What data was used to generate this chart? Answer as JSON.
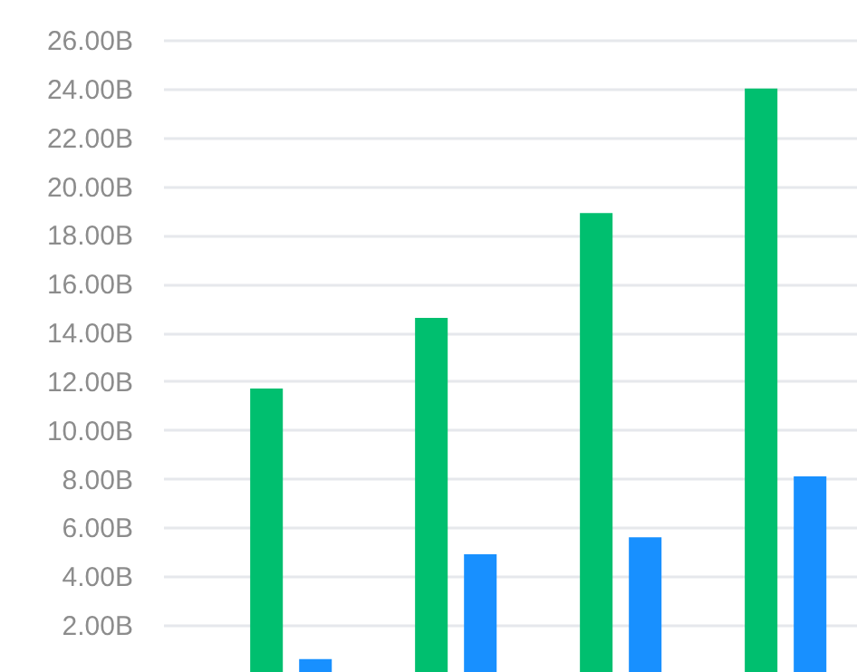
{
  "chart_data": {
    "type": "bar",
    "categories": [
      null,
      null,
      null,
      null
    ],
    "series": [
      {
        "color": "#00bf6f",
        "values": [
          11.7,
          14.6,
          18.9,
          24.0
        ]
      },
      {
        "color": "#1890ff",
        "values": [
          0.6,
          4.9,
          5.6,
          8.1
        ]
      }
    ],
    "ylim": [
      0,
      26
    ],
    "yticks": [
      {
        "value": 2,
        "label": "2.00B"
      },
      {
        "value": 4,
        "label": "4.00B"
      },
      {
        "value": 6,
        "label": "6.00B"
      },
      {
        "value": 8,
        "label": "8.00B"
      },
      {
        "value": 10,
        "label": "10.00B"
      },
      {
        "value": 12,
        "label": "12.00B"
      },
      {
        "value": 14,
        "label": "14.00B"
      },
      {
        "value": 16,
        "label": "16.00B"
      },
      {
        "value": 18,
        "label": "18.00B"
      },
      {
        "value": 20,
        "label": "20.00B"
      },
      {
        "value": 22,
        "label": "22.00B"
      },
      {
        "value": 24,
        "label": "24.00B"
      },
      {
        "value": 26,
        "label": "26.00B"
      }
    ],
    "grid": "y",
    "tick_labels": "y",
    "legend": false
  }
}
